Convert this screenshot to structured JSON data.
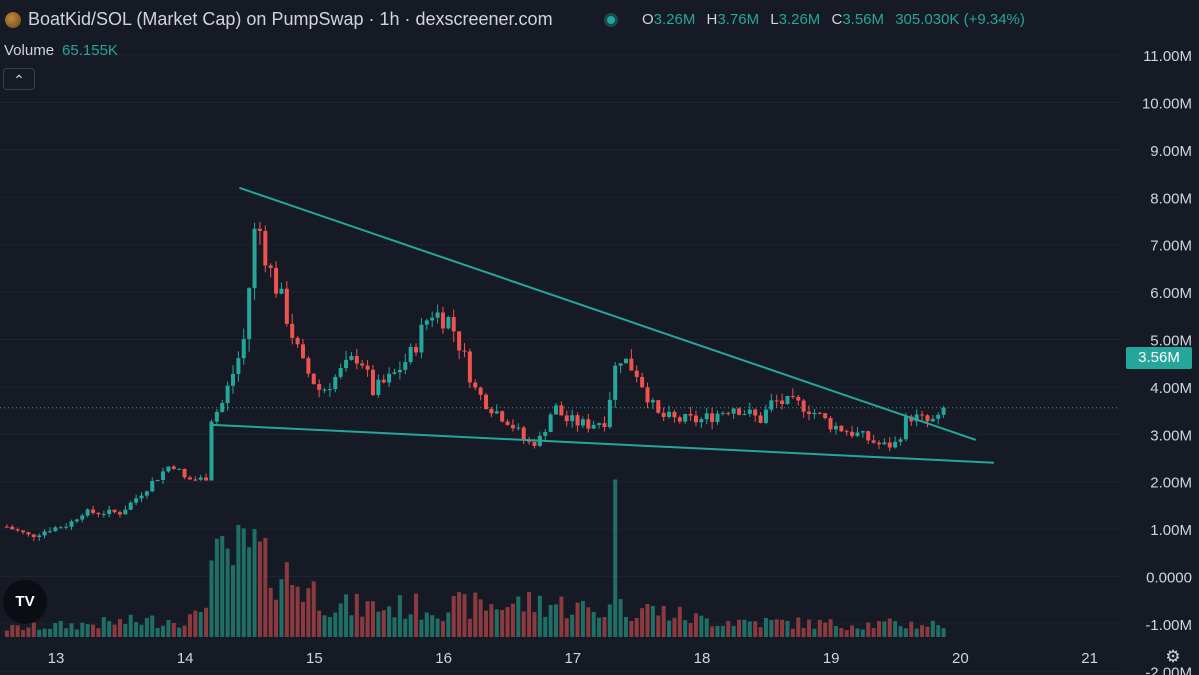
{
  "header": {
    "title": "BoatKid/SOL (Market Cap) on PumpSwap · 1h · dexscreener.com",
    "ohlc": [
      {
        "key": "O",
        "value": "3.26M"
      },
      {
        "key": "H",
        "value": "3.76M"
      },
      {
        "key": "L",
        "value": "3.26M"
      },
      {
        "key": "C",
        "value": "3.56M"
      }
    ],
    "change": "305.030K (+9.34%)",
    "volume_label": "Volume",
    "volume_value": "65.155K",
    "collapse_icon": "chevron-up-icon"
  },
  "price_label": "3.56M",
  "tv_logo_text": "TV",
  "settings_icon": "gear-icon",
  "colors": {
    "background": "#161a25",
    "up": "#26a69a",
    "down": "#ef5350",
    "volume_up": "#1f6f66",
    "volume_down": "#8b3a3f",
    "trendline": "#26a69a",
    "grid": "#1f2330",
    "text": "#d1d4dc"
  },
  "chart_data": {
    "type": "candlestick",
    "title": "BoatKid/SOL (Market Cap) on PumpSwap · 1h · dexscreener.com",
    "x_tick_labels": [
      "13",
      "14",
      "15",
      "16",
      "17",
      "18",
      "19",
      "20",
      "21"
    ],
    "y_tick_labels": [
      "11.00M",
      "10.00M",
      "9.00M",
      "8.00M",
      "7.00M",
      "6.00M",
      "5.00M",
      "4.00M",
      "3.00M",
      "2.00M",
      "1.00M",
      "0.0000",
      "-1.00M",
      "-2.00M"
    ],
    "ylim": [
      -2.2,
      11.0
    ],
    "xlim": [
      12.62,
      21.52
    ],
    "current_price": 3.56,
    "grid": "horizontal",
    "candle_anchors": [
      {
        "t": 12.62,
        "v": 1.05
      },
      {
        "t": 12.8,
        "v": 0.85
      },
      {
        "t": 12.95,
        "v": 1.0
      },
      {
        "t": 13.1,
        "v": 1.1
      },
      {
        "t": 13.2,
        "v": 1.35
      },
      {
        "t": 13.5,
        "v": 1.35
      },
      {
        "t": 13.6,
        "v": 1.6
      },
      {
        "t": 13.75,
        "v": 2.0
      },
      {
        "t": 13.9,
        "v": 2.4
      },
      {
        "t": 14.0,
        "v": 2.05
      },
      {
        "t": 14.16,
        "v": 2.05
      },
      {
        "t": 14.2,
        "v": 3.35
      },
      {
        "t": 14.28,
        "v": 3.6
      },
      {
        "t": 14.45,
        "v": 4.9
      },
      {
        "t": 14.55,
        "v": 7.6
      },
      {
        "t": 14.65,
        "v": 6.5
      },
      {
        "t": 14.75,
        "v": 5.8
      },
      {
        "t": 14.9,
        "v": 4.5
      },
      {
        "t": 15.05,
        "v": 3.9
      },
      {
        "t": 15.2,
        "v": 4.3
      },
      {
        "t": 15.35,
        "v": 4.7
      },
      {
        "t": 15.45,
        "v": 3.9
      },
      {
        "t": 15.6,
        "v": 4.2
      },
      {
        "t": 15.75,
        "v": 4.7
      },
      {
        "t": 15.9,
        "v": 5.6
      },
      {
        "t": 16.05,
        "v": 5.4
      },
      {
        "t": 16.15,
        "v": 4.7
      },
      {
        "t": 16.25,
        "v": 3.9
      },
      {
        "t": 16.4,
        "v": 3.5
      },
      {
        "t": 16.5,
        "v": 3.3
      },
      {
        "t": 16.65,
        "v": 2.8
      },
      {
        "t": 16.75,
        "v": 2.9
      },
      {
        "t": 16.85,
        "v": 3.6
      },
      {
        "t": 16.95,
        "v": 3.3
      },
      {
        "t": 17.1,
        "v": 3.2
      },
      {
        "t": 17.25,
        "v": 3.3
      },
      {
        "t": 17.35,
        "v": 4.7
      },
      {
        "t": 17.5,
        "v": 4.3
      },
      {
        "t": 17.65,
        "v": 3.4
      },
      {
        "t": 17.8,
        "v": 3.3
      },
      {
        "t": 18.0,
        "v": 3.3
      },
      {
        "t": 18.25,
        "v": 3.6
      },
      {
        "t": 18.45,
        "v": 3.3
      },
      {
        "t": 18.55,
        "v": 3.7
      },
      {
        "t": 18.8,
        "v": 3.6
      },
      {
        "t": 19.0,
        "v": 3.2
      },
      {
        "t": 19.2,
        "v": 3.0
      },
      {
        "t": 19.4,
        "v": 2.75
      },
      {
        "t": 19.5,
        "v": 2.8
      },
      {
        "t": 19.6,
        "v": 3.4
      },
      {
        "t": 19.75,
        "v": 3.25
      },
      {
        "t": 19.85,
        "v": 3.3
      },
      {
        "t": 19.9,
        "v": 3.56
      }
    ],
    "volume_anchors": [
      {
        "t": 12.62,
        "v": 0.1
      },
      {
        "t": 14.1,
        "v": 0.22
      },
      {
        "t": 14.2,
        "v": 0.8
      },
      {
        "t": 14.5,
        "v": 1.0
      },
      {
        "t": 14.8,
        "v": 0.7
      },
      {
        "t": 15.2,
        "v": 0.35
      },
      {
        "t": 16.0,
        "v": 0.35
      },
      {
        "t": 16.8,
        "v": 0.4
      },
      {
        "t": 17.2,
        "v": 0.3
      },
      {
        "t": 17.5,
        "v": 0.35
      },
      {
        "t": 18.0,
        "v": 0.2
      },
      {
        "t": 19.0,
        "v": 0.15
      },
      {
        "t": 19.9,
        "v": 0.15
      }
    ],
    "volume_spikes": [
      {
        "t": 14.2,
        "v": 0.85
      },
      {
        "t": 14.54,
        "v": 1.2
      },
      {
        "t": 14.63,
        "v": 1.1
      },
      {
        "t": 17.33,
        "v": 1.75
      }
    ],
    "trendlines": [
      {
        "x1": 14.42,
        "y1": 8.2,
        "x2": 20.12,
        "y2": 2.88
      },
      {
        "x1": 14.21,
        "y1": 3.2,
        "x2": 20.26,
        "y2": 2.4
      }
    ]
  }
}
